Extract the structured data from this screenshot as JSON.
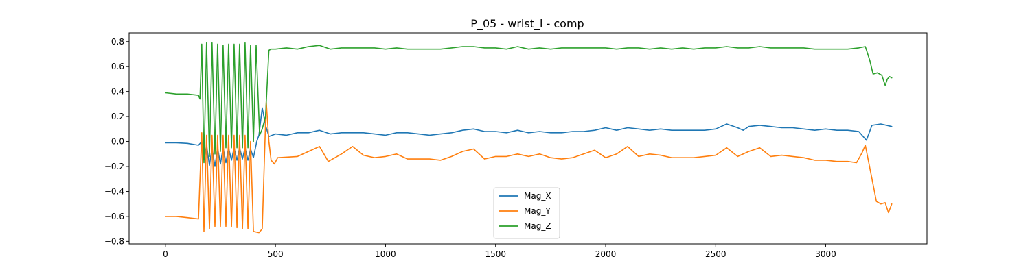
{
  "chart_data": {
    "type": "line",
    "title": "P_05 - wrist_l - comp",
    "xlabel": "",
    "ylabel": "",
    "xlim": [
      -165,
      3460
    ],
    "ylim": [
      -0.82,
      0.87
    ],
    "xticks": [
      0,
      500,
      1000,
      1500,
      2000,
      2500,
      3000
    ],
    "yticks": [
      -0.8,
      -0.6,
      -0.4,
      -0.2,
      0.0,
      0.2,
      0.4,
      0.6,
      0.8
    ],
    "xtick_labels": [
      "0",
      "500",
      "1000",
      "1500",
      "2000",
      "2500",
      "3000"
    ],
    "ytick_labels": [
      "−0.8",
      "−0.6",
      "−0.4",
      "−0.2",
      "0.0",
      "0.2",
      "0.4",
      "0.6",
      "0.8"
    ],
    "grid": false,
    "legend": {
      "placement": "lower-center"
    },
    "series": [
      {
        "name": "Mag_X",
        "color": "#1f77b4",
        "points": [
          [
            0,
            -0.01
          ],
          [
            50,
            -0.01
          ],
          [
            100,
            -0.015
          ],
          [
            150,
            -0.03
          ],
          [
            165,
            0.0
          ],
          [
            175,
            -0.15
          ],
          [
            187,
            -0.03
          ],
          [
            200,
            -0.19
          ],
          [
            212,
            -0.05
          ],
          [
            225,
            -0.2
          ],
          [
            237,
            -0.05
          ],
          [
            250,
            -0.18
          ],
          [
            262,
            -0.05
          ],
          [
            275,
            -0.17
          ],
          [
            287,
            -0.05
          ],
          [
            300,
            -0.15
          ],
          [
            312,
            -0.05
          ],
          [
            325,
            -0.15
          ],
          [
            337,
            -0.05
          ],
          [
            350,
            -0.14
          ],
          [
            362,
            -0.05
          ],
          [
            375,
            -0.15
          ],
          [
            387,
            -0.06
          ],
          [
            400,
            -0.13
          ],
          [
            415,
            0.0
          ],
          [
            425,
            0.05
          ],
          [
            440,
            0.27
          ],
          [
            455,
            0.13
          ],
          [
            470,
            0.04
          ],
          [
            500,
            0.06
          ],
          [
            550,
            0.05
          ],
          [
            600,
            0.07
          ],
          [
            650,
            0.07
          ],
          [
            700,
            0.09
          ],
          [
            750,
            0.06
          ],
          [
            800,
            0.07
          ],
          [
            850,
            0.07
          ],
          [
            900,
            0.07
          ],
          [
            950,
            0.06
          ],
          [
            1000,
            0.05
          ],
          [
            1050,
            0.07
          ],
          [
            1100,
            0.07
          ],
          [
            1150,
            0.06
          ],
          [
            1200,
            0.05
          ],
          [
            1250,
            0.06
          ],
          [
            1300,
            0.07
          ],
          [
            1350,
            0.09
          ],
          [
            1400,
            0.1
          ],
          [
            1450,
            0.08
          ],
          [
            1500,
            0.08
          ],
          [
            1550,
            0.07
          ],
          [
            1600,
            0.09
          ],
          [
            1650,
            0.07
          ],
          [
            1700,
            0.08
          ],
          [
            1750,
            0.07
          ],
          [
            1800,
            0.07
          ],
          [
            1850,
            0.08
          ],
          [
            1900,
            0.08
          ],
          [
            1950,
            0.09
          ],
          [
            2000,
            0.11
          ],
          [
            2050,
            0.09
          ],
          [
            2100,
            0.11
          ],
          [
            2150,
            0.1
          ],
          [
            2200,
            0.09
          ],
          [
            2250,
            0.1
          ],
          [
            2300,
            0.09
          ],
          [
            2350,
            0.09
          ],
          [
            2400,
            0.09
          ],
          [
            2450,
            0.09
          ],
          [
            2500,
            0.1
          ],
          [
            2550,
            0.14
          ],
          [
            2600,
            0.11
          ],
          [
            2625,
            0.09
          ],
          [
            2650,
            0.12
          ],
          [
            2700,
            0.13
          ],
          [
            2750,
            0.12
          ],
          [
            2800,
            0.11
          ],
          [
            2850,
            0.11
          ],
          [
            2900,
            0.1
          ],
          [
            2950,
            0.09
          ],
          [
            3000,
            0.1
          ],
          [
            3050,
            0.09
          ],
          [
            3100,
            0.09
          ],
          [
            3150,
            0.08
          ],
          [
            3185,
            0.01
          ],
          [
            3210,
            0.13
          ],
          [
            3250,
            0.14
          ],
          [
            3300,
            0.12
          ]
        ]
      },
      {
        "name": "Mag_Y",
        "color": "#ff7f0e",
        "points": [
          [
            0,
            -0.6
          ],
          [
            50,
            -0.6
          ],
          [
            100,
            -0.61
          ],
          [
            150,
            -0.62
          ],
          [
            165,
            0.07
          ],
          [
            175,
            -0.72
          ],
          [
            187,
            0.05
          ],
          [
            200,
            -0.7
          ],
          [
            212,
            0.05
          ],
          [
            225,
            -0.68
          ],
          [
            237,
            0.05
          ],
          [
            250,
            -0.68
          ],
          [
            262,
            0.05
          ],
          [
            275,
            -0.68
          ],
          [
            287,
            0.05
          ],
          [
            300,
            -0.68
          ],
          [
            312,
            0.05
          ],
          [
            325,
            -0.69
          ],
          [
            337,
            0.05
          ],
          [
            350,
            -0.7
          ],
          [
            362,
            0.05
          ],
          [
            375,
            -0.7
          ],
          [
            387,
            0.0
          ],
          [
            400,
            -0.72
          ],
          [
            425,
            -0.73
          ],
          [
            440,
            -0.7
          ],
          [
            458,
            0.32
          ],
          [
            470,
            0.0
          ],
          [
            480,
            -0.15
          ],
          [
            495,
            -0.18
          ],
          [
            510,
            -0.13
          ],
          [
            600,
            -0.12
          ],
          [
            650,
            -0.08
          ],
          [
            700,
            -0.04
          ],
          [
            740,
            -0.16
          ],
          [
            800,
            -0.1
          ],
          [
            850,
            -0.04
          ],
          [
            900,
            -0.11
          ],
          [
            950,
            -0.13
          ],
          [
            1000,
            -0.12
          ],
          [
            1050,
            -0.1
          ],
          [
            1100,
            -0.14
          ],
          [
            1200,
            -0.14
          ],
          [
            1250,
            -0.15
          ],
          [
            1300,
            -0.12
          ],
          [
            1350,
            -0.08
          ],
          [
            1400,
            -0.06
          ],
          [
            1450,
            -0.14
          ],
          [
            1500,
            -0.12
          ],
          [
            1550,
            -0.12
          ],
          [
            1600,
            -0.1
          ],
          [
            1650,
            -0.12
          ],
          [
            1700,
            -0.1
          ],
          [
            1750,
            -0.13
          ],
          [
            1800,
            -0.14
          ],
          [
            1850,
            -0.13
          ],
          [
            1900,
            -0.1
          ],
          [
            1950,
            -0.07
          ],
          [
            2000,
            -0.13
          ],
          [
            2050,
            -0.1
          ],
          [
            2100,
            -0.04
          ],
          [
            2150,
            -0.12
          ],
          [
            2200,
            -0.1
          ],
          [
            2250,
            -0.11
          ],
          [
            2300,
            -0.13
          ],
          [
            2350,
            -0.13
          ],
          [
            2400,
            -0.13
          ],
          [
            2450,
            -0.12
          ],
          [
            2500,
            -0.11
          ],
          [
            2550,
            -0.05
          ],
          [
            2600,
            -0.12
          ],
          [
            2650,
            -0.08
          ],
          [
            2700,
            -0.05
          ],
          [
            2750,
            -0.12
          ],
          [
            2800,
            -0.11
          ],
          [
            2850,
            -0.12
          ],
          [
            2900,
            -0.13
          ],
          [
            2950,
            -0.15
          ],
          [
            3000,
            -0.15
          ],
          [
            3050,
            -0.16
          ],
          [
            3100,
            -0.16
          ],
          [
            3140,
            -0.17
          ],
          [
            3165,
            -0.09
          ],
          [
            3180,
            -0.03
          ],
          [
            3210,
            -0.3
          ],
          [
            3230,
            -0.48
          ],
          [
            3250,
            -0.5
          ],
          [
            3270,
            -0.49
          ],
          [
            3285,
            -0.57
          ],
          [
            3300,
            -0.5
          ]
        ]
      },
      {
        "name": "Mag_Z",
        "color": "#2ca02c",
        "points": [
          [
            0,
            0.39
          ],
          [
            50,
            0.38
          ],
          [
            100,
            0.38
          ],
          [
            150,
            0.37
          ],
          [
            157,
            0.34
          ],
          [
            165,
            0.78
          ],
          [
            175,
            -0.17
          ],
          [
            187,
            0.79
          ],
          [
            200,
            -0.12
          ],
          [
            212,
            0.79
          ],
          [
            225,
            -0.1
          ],
          [
            237,
            0.78
          ],
          [
            250,
            -0.08
          ],
          [
            262,
            0.77
          ],
          [
            275,
            -0.05
          ],
          [
            287,
            0.78
          ],
          [
            300,
            -0.05
          ],
          [
            312,
            0.78
          ],
          [
            325,
            -0.05
          ],
          [
            337,
            0.78
          ],
          [
            350,
            -0.05
          ],
          [
            362,
            0.79
          ],
          [
            375,
            -0.05
          ],
          [
            387,
            0.77
          ],
          [
            400,
            0.0
          ],
          [
            412,
            0.77
          ],
          [
            428,
            0.05
          ],
          [
            440,
            0.1
          ],
          [
            455,
            0.2
          ],
          [
            470,
            0.73
          ],
          [
            480,
            0.74
          ],
          [
            500,
            0.74
          ],
          [
            550,
            0.75
          ],
          [
            600,
            0.74
          ],
          [
            650,
            0.76
          ],
          [
            700,
            0.77
          ],
          [
            750,
            0.74
          ],
          [
            800,
            0.75
          ],
          [
            850,
            0.75
          ],
          [
            900,
            0.75
          ],
          [
            950,
            0.75
          ],
          [
            1000,
            0.74
          ],
          [
            1050,
            0.75
          ],
          [
            1100,
            0.74
          ],
          [
            1150,
            0.74
          ],
          [
            1200,
            0.74
          ],
          [
            1250,
            0.74
          ],
          [
            1300,
            0.75
          ],
          [
            1350,
            0.76
          ],
          [
            1400,
            0.76
          ],
          [
            1450,
            0.75
          ],
          [
            1500,
            0.75
          ],
          [
            1550,
            0.74
          ],
          [
            1600,
            0.76
          ],
          [
            1650,
            0.74
          ],
          [
            1700,
            0.75
          ],
          [
            1750,
            0.74
          ],
          [
            1800,
            0.75
          ],
          [
            1850,
            0.75
          ],
          [
            1900,
            0.75
          ],
          [
            1950,
            0.75
          ],
          [
            2000,
            0.75
          ],
          [
            2050,
            0.74
          ],
          [
            2100,
            0.75
          ],
          [
            2150,
            0.75
          ],
          [
            2200,
            0.74
          ],
          [
            2250,
            0.75
          ],
          [
            2300,
            0.74
          ],
          [
            2350,
            0.75
          ],
          [
            2400,
            0.74
          ],
          [
            2450,
            0.75
          ],
          [
            2500,
            0.75
          ],
          [
            2550,
            0.76
          ],
          [
            2600,
            0.75
          ],
          [
            2650,
            0.75
          ],
          [
            2700,
            0.76
          ],
          [
            2750,
            0.75
          ],
          [
            2800,
            0.75
          ],
          [
            2850,
            0.75
          ],
          [
            2900,
            0.75
          ],
          [
            2950,
            0.74
          ],
          [
            3000,
            0.74
          ],
          [
            3050,
            0.74
          ],
          [
            3100,
            0.74
          ],
          [
            3150,
            0.75
          ],
          [
            3180,
            0.76
          ],
          [
            3200,
            0.65
          ],
          [
            3215,
            0.54
          ],
          [
            3235,
            0.55
          ],
          [
            3255,
            0.53
          ],
          [
            3270,
            0.45
          ],
          [
            3280,
            0.5
          ],
          [
            3290,
            0.52
          ],
          [
            3300,
            0.51
          ]
        ]
      }
    ]
  }
}
